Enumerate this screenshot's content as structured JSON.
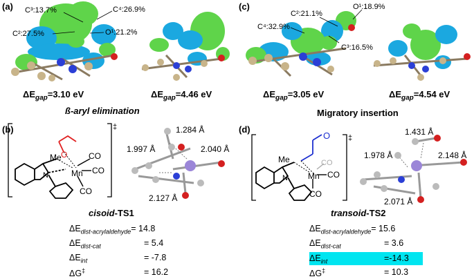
{
  "panels": {
    "a": {
      "letter": "(a)",
      "labels": [
        "C³:13.7%",
        "C⁴:26.9%",
        "C²:27.5%",
        "O¹:21.2%"
      ],
      "gap_left": {
        "prefix": "ΔE",
        "sub": "gap",
        "value": "=3.10 eV"
      },
      "gap_right": {
        "prefix": "ΔE",
        "sub": "gap",
        "value": "=4.46 eV"
      },
      "caption": "ß-aryl elimination"
    },
    "c": {
      "letter": "(c)",
      "labels": [
        "C²:21.1%",
        "O¹:18.9%",
        "C⁴:32.9%",
        "C³:16.5%"
      ],
      "gap_left": {
        "prefix": "ΔE",
        "sub": "gap",
        "value": "=3.05 eV"
      },
      "gap_right": {
        "prefix": "ΔE",
        "sub": "gap",
        "value": "=4.54 eV"
      },
      "caption": "Migratory insertion"
    },
    "b": {
      "letter": "(b)",
      "struct": {
        "me": "Me",
        "o": "O",
        "n": "N",
        "mn": "Mn",
        "co1": "CO",
        "co2": "CO",
        "co3": "CO",
        "dagger": "‡"
      },
      "distances": [
        "1.284 Å",
        "1.997 Å",
        "2.040 Å",
        "2.127 Å"
      ],
      "ts_italic": "cisoid",
      "ts_normal": "-TS1",
      "energies": [
        {
          "label": "ΔE",
          "sub": "dist-acrylaldehyde",
          "value": "= 14.8"
        },
        {
          "label": "ΔE",
          "sub": "dist-cat",
          "value": "=  5.4"
        },
        {
          "label": "ΔE",
          "sub": "int",
          "value": "= -7.8"
        },
        {
          "label": "ΔG",
          "sup": "‡",
          "value": "= 16.2"
        }
      ]
    },
    "d": {
      "letter": "(d)",
      "struct": {
        "me": "Me",
        "o": "O",
        "n": "N",
        "mn": "Mn",
        "co1": "CO",
        "co2": "CO",
        "co3": "CO",
        "dagger": "‡"
      },
      "distances": [
        "1.431 Å",
        "1.978 Å",
        "2.148 Å",
        "2.071 Å"
      ],
      "ts_italic": "transoid",
      "ts_normal": "-TS2",
      "energies": [
        {
          "label": "ΔE",
          "sub": "dist-acrylaldehyde",
          "value": "= 15.6"
        },
        {
          "label": "ΔE",
          "sub": "dist-cat",
          "value": "=  3.6"
        },
        {
          "label": "ΔE",
          "sub": "int",
          "value": "=-14.3"
        },
        {
          "label": "ΔG",
          "sup": "‡",
          "value": "= 10.3"
        }
      ],
      "highlight_row": 2,
      "highlight_color": "#00e5f0"
    }
  },
  "colors": {
    "orbital_positive": "#5fd44a",
    "orbital_negative": "#1ba8e0",
    "carbon": "#c8b48a",
    "nitrogen": "#2b3fd6",
    "oxygen": "#d42020",
    "manganese": "#9b86d8",
    "aldehyde_red": "#e02020",
    "aldehyde_blue": "#1d2fd0"
  }
}
